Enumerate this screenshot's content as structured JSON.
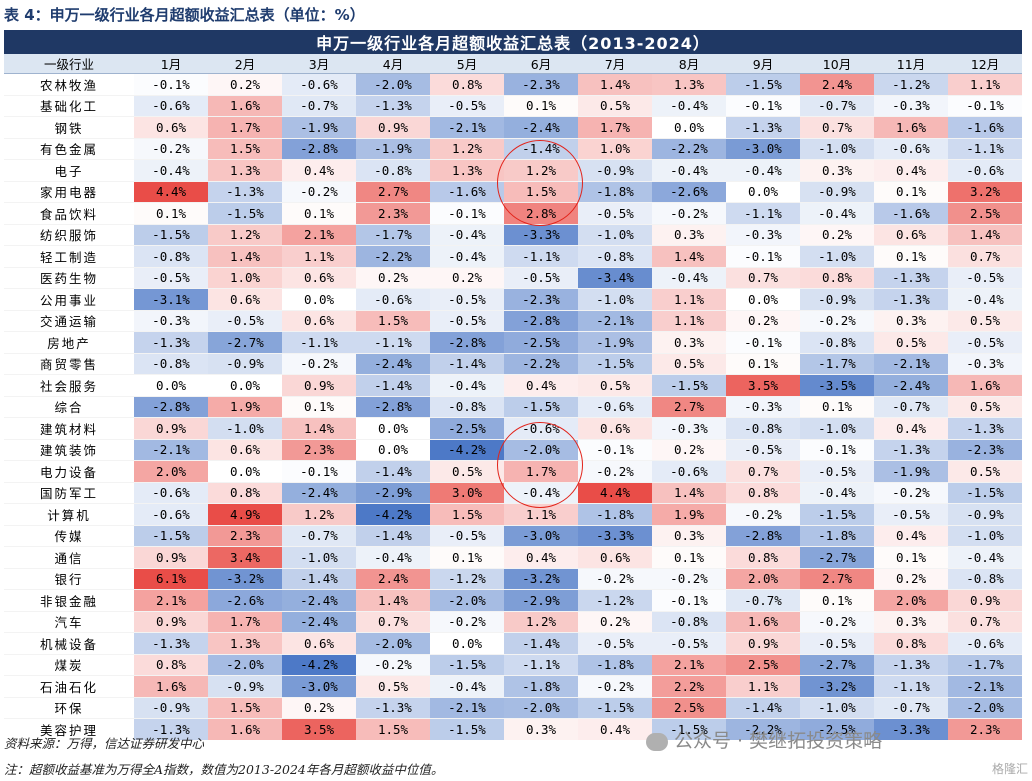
{
  "caption": "表 4：申万一级行业各月超额收益汇总表（单位：%）",
  "table_title": "申万一级行业各月超额收益汇总表（2013-2024）",
  "header": [
    "一级行业",
    "1月",
    "2月",
    "3月",
    "4月",
    "5月",
    "6月",
    "7月",
    "8月",
    "9月",
    "10月",
    "11月",
    "12月"
  ],
  "colors": {
    "negative": "#4472c4",
    "positive": "#e8443e",
    "title_bg": "#1f3864",
    "header_bg": "#dce6f2",
    "highlight_circle": "#e2231a"
  },
  "rows": [
    [
      "农林牧渔",
      "-0.1%",
      "0.2%",
      "-0.6%",
      "-2.0%",
      "0.8%",
      "-2.3%",
      "1.4%",
      "1.3%",
      "-1.5%",
      "2.4%",
      "-1.2%",
      "1.1%"
    ],
    [
      "基础化工",
      "-0.6%",
      "1.6%",
      "-0.7%",
      "-1.3%",
      "-0.5%",
      "0.1%",
      "0.5%",
      "-0.4%",
      "-0.1%",
      "-0.7%",
      "-0.3%",
      "-0.1%"
    ],
    [
      "钢铁",
      "0.6%",
      "1.7%",
      "-1.9%",
      "0.9%",
      "-2.1%",
      "-2.4%",
      "1.7%",
      "0.0%",
      "-1.3%",
      "0.7%",
      "1.6%",
      "-1.6%"
    ],
    [
      "有色金属",
      "-0.2%",
      "1.5%",
      "-2.8%",
      "-1.9%",
      "1.2%",
      "-1.4%",
      "1.0%",
      "-2.2%",
      "-3.0%",
      "-1.0%",
      "-0.6%",
      "-1.1%"
    ],
    [
      "电子",
      "-0.4%",
      "1.3%",
      "0.4%",
      "-0.8%",
      "1.3%",
      "1.2%",
      "-0.9%",
      "-0.4%",
      "-0.4%",
      "0.3%",
      "0.4%",
      "-0.6%"
    ],
    [
      "家用电器",
      "4.4%",
      "-1.3%",
      "-0.2%",
      "2.7%",
      "-1.6%",
      "1.5%",
      "-1.8%",
      "-2.6%",
      "0.0%",
      "-0.9%",
      "0.1%",
      "3.2%"
    ],
    [
      "食品饮料",
      "0.1%",
      "-1.5%",
      "0.1%",
      "2.3%",
      "-0.1%",
      "2.8%",
      "-0.5%",
      "-0.2%",
      "-1.1%",
      "-0.4%",
      "-1.6%",
      "2.5%"
    ],
    [
      "纺织服饰",
      "-1.5%",
      "1.2%",
      "2.1%",
      "-1.7%",
      "-0.4%",
      "-3.3%",
      "-1.0%",
      "0.3%",
      "-0.3%",
      "0.2%",
      "0.6%",
      "1.4%"
    ],
    [
      "轻工制造",
      "-0.8%",
      "1.4%",
      "1.1%",
      "-2.2%",
      "-0.4%",
      "-1.1%",
      "-0.8%",
      "1.4%",
      "-0.1%",
      "-1.0%",
      "0.1%",
      "0.7%"
    ],
    [
      "医药生物",
      "-0.5%",
      "1.0%",
      "0.6%",
      "0.2%",
      "0.2%",
      "-0.5%",
      "-3.4%",
      "-0.4%",
      "0.7%",
      "0.8%",
      "-1.3%",
      "-0.5%"
    ],
    [
      "公用事业",
      "-3.1%",
      "0.6%",
      "0.0%",
      "-0.6%",
      "-0.5%",
      "-2.3%",
      "-1.0%",
      "1.1%",
      "0.0%",
      "-0.9%",
      "-1.3%",
      "-0.4%"
    ],
    [
      "交通运输",
      "-0.3%",
      "-0.5%",
      "0.6%",
      "1.5%",
      "-0.5%",
      "-2.8%",
      "-2.1%",
      "1.1%",
      "0.2%",
      "-0.2%",
      "0.3%",
      "0.5%"
    ],
    [
      "房地产",
      "-1.3%",
      "-2.7%",
      "-1.1%",
      "-1.1%",
      "-2.8%",
      "-2.5%",
      "-1.9%",
      "0.3%",
      "-0.1%",
      "-0.8%",
      "0.5%",
      "-0.5%"
    ],
    [
      "商贸零售",
      "-0.8%",
      "-0.9%",
      "-0.2%",
      "-2.4%",
      "-1.4%",
      "-2.2%",
      "-1.5%",
      "0.5%",
      "0.1%",
      "-1.7%",
      "-2.1%",
      "-0.3%"
    ],
    [
      "社会服务",
      "0.0%",
      "0.0%",
      "0.9%",
      "-1.4%",
      "-0.4%",
      "0.4%",
      "0.5%",
      "-1.5%",
      "3.5%",
      "-3.5%",
      "-2.4%",
      "1.6%"
    ],
    [
      "综合",
      "-2.8%",
      "1.9%",
      "0.1%",
      "-2.8%",
      "-0.8%",
      "-1.5%",
      "-0.6%",
      "2.7%",
      "-0.3%",
      "0.1%",
      "-0.7%",
      "0.5%"
    ],
    [
      "建筑材料",
      "0.9%",
      "-1.0%",
      "1.4%",
      "0.0%",
      "-2.5%",
      "-0.6%",
      "0.6%",
      "-0.3%",
      "-0.8%",
      "-1.0%",
      "0.4%",
      "-1.3%"
    ],
    [
      "建筑装饰",
      "-2.1%",
      "0.6%",
      "2.3%",
      "0.0%",
      "-4.2%",
      "-2.0%",
      "-0.1%",
      "0.2%",
      "-0.5%",
      "-0.1%",
      "-1.3%",
      "-2.3%"
    ],
    [
      "电力设备",
      "2.0%",
      "0.0%",
      "-0.1%",
      "-1.4%",
      "0.5%",
      "1.7%",
      "-0.2%",
      "-0.6%",
      "0.7%",
      "-0.5%",
      "-1.9%",
      "0.5%"
    ],
    [
      "国防军工",
      "-0.6%",
      "0.8%",
      "-2.4%",
      "-2.9%",
      "3.0%",
      "-0.4%",
      "4.4%",
      "1.4%",
      "0.8%",
      "-0.4%",
      "-0.2%",
      "-1.5%"
    ],
    [
      "计算机",
      "-0.6%",
      "4.9%",
      "1.2%",
      "-4.2%",
      "1.5%",
      "1.1%",
      "-1.8%",
      "1.9%",
      "-0.2%",
      "-1.5%",
      "-0.5%",
      "-0.9%"
    ],
    [
      "传媒",
      "-1.5%",
      "2.3%",
      "-0.7%",
      "-1.4%",
      "-0.5%",
      "-3.0%",
      "-3.3%",
      "0.3%",
      "-2.8%",
      "-1.8%",
      "0.4%",
      "-1.0%"
    ],
    [
      "通信",
      "0.9%",
      "3.4%",
      "-1.0%",
      "-0.4%",
      "0.1%",
      "0.4%",
      "0.6%",
      "0.1%",
      "0.8%",
      "-2.7%",
      "0.1%",
      "-0.4%"
    ],
    [
      "银行",
      "6.1%",
      "-3.2%",
      "-1.4%",
      "2.4%",
      "-1.2%",
      "-3.2%",
      "-0.2%",
      "-0.2%",
      "2.0%",
      "2.7%",
      "0.2%",
      "-0.8%"
    ],
    [
      "非银金融",
      "2.1%",
      "-2.6%",
      "-2.4%",
      "1.4%",
      "-2.0%",
      "-2.9%",
      "-1.2%",
      "-0.1%",
      "-0.7%",
      "0.1%",
      "2.0%",
      "0.9%"
    ],
    [
      "汽车",
      "0.9%",
      "1.7%",
      "-2.4%",
      "0.7%",
      "-0.2%",
      "1.2%",
      "0.2%",
      "-0.8%",
      "1.6%",
      "-0.2%",
      "0.3%",
      "0.7%"
    ],
    [
      "机械设备",
      "-1.3%",
      "1.3%",
      "0.6%",
      "-2.0%",
      "0.0%",
      "-1.4%",
      "-0.5%",
      "-0.5%",
      "0.9%",
      "-0.5%",
      "0.8%",
      "-0.6%"
    ],
    [
      "煤炭",
      "0.8%",
      "-2.0%",
      "-4.2%",
      "-0.2%",
      "-1.5%",
      "-1.1%",
      "-1.8%",
      "2.1%",
      "2.5%",
      "-2.7%",
      "-1.3%",
      "-1.7%"
    ],
    [
      "石油石化",
      "1.6%",
      "-0.9%",
      "-3.0%",
      "0.5%",
      "-0.4%",
      "-1.8%",
      "-0.2%",
      "2.2%",
      "1.1%",
      "-3.2%",
      "-1.1%",
      "-2.1%"
    ],
    [
      "环保",
      "-0.9%",
      "1.5%",
      "0.2%",
      "-1.3%",
      "-2.1%",
      "-2.0%",
      "-1.5%",
      "2.5%",
      "-1.4%",
      "-1.0%",
      "-0.7%",
      "-2.0%"
    ],
    [
      "美容护理",
      "-1.3%",
      "1.6%",
      "3.5%",
      "1.5%",
      "-1.5%",
      "0.3%",
      "0.4%",
      "-1.5%",
      "-2.2%",
      "-2.5%",
      "-3.3%",
      "2.3%"
    ]
  ],
  "source": "资料来源：万得，信达证券研发中心",
  "note": "注：超额收益基准为万得全A指数，数值为2013-2024年各月超额收益中位值。",
  "watermark": "公众号 · 樊继拓投资策略",
  "corner_mark": "格隆汇"
}
